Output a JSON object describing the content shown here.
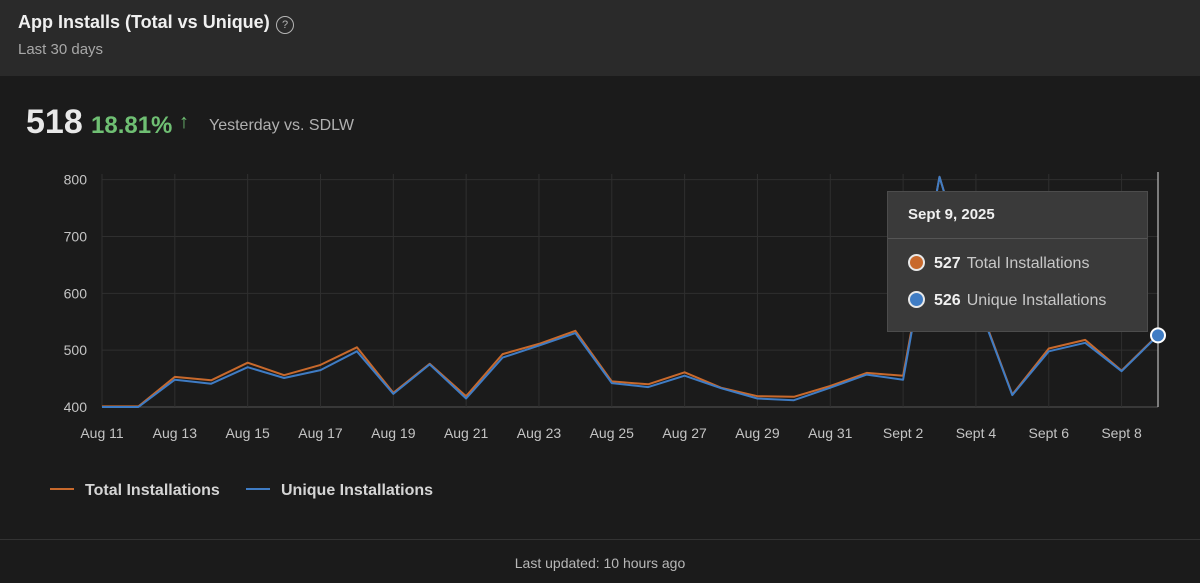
{
  "header": {
    "title": "App Installs (Total vs Unique)",
    "help_icon": "question-circle-icon",
    "help_glyph": "?",
    "subtitle": "Last 30 days"
  },
  "kpi": {
    "value": "518",
    "change": "18.81%",
    "arrow": "↑",
    "arrow_icon": "arrow-up-icon",
    "caption": "Yesterday vs. SDLW"
  },
  "tooltip": {
    "date": "Sept 9, 2025",
    "rows": [
      {
        "value": "527",
        "label": "Total Installations",
        "color": "#c8692c"
      },
      {
        "value": "526",
        "label": "Unique Installations",
        "color": "#3f7cc4"
      }
    ]
  },
  "legend": [
    {
      "label": "Total Installations",
      "color": "#c8692c"
    },
    {
      "label": "Unique Installations",
      "color": "#3f7cc4"
    }
  ],
  "footer": {
    "last_updated": "Last updated: 10 hours ago"
  },
  "colors": {
    "total": "#c8692c",
    "unique": "#3f7cc4",
    "positive": "#6fbf73"
  },
  "chart_data": {
    "type": "line",
    "x": [
      "Aug 11",
      "Aug 12",
      "Aug 13",
      "Aug 14",
      "Aug 15",
      "Aug 16",
      "Aug 17",
      "Aug 18",
      "Aug 19",
      "Aug 20",
      "Aug 21",
      "Aug 22",
      "Aug 23",
      "Aug 24",
      "Aug 25",
      "Aug 26",
      "Aug 27",
      "Aug 28",
      "Aug 29",
      "Aug 30",
      "Aug 31",
      "Sept 1",
      "Sept 2",
      "Sept 3",
      "Sept 4",
      "Sept 5",
      "Sept 6",
      "Sept 7",
      "Sept 8",
      "Sept 9"
    ],
    "x_tick_labels": [
      "Aug 11",
      "Aug 13",
      "Aug 15",
      "Aug 17",
      "Aug 19",
      "Aug 21",
      "Aug 23",
      "Aug 25",
      "Aug 27",
      "Aug 29",
      "Aug 31",
      "Sept 2",
      "Sept 4",
      "Sept 6",
      "Sept 8"
    ],
    "series": [
      {
        "name": "Total Installations",
        "color": "#c8692c",
        "values": [
          401,
          401,
          453,
          447,
          478,
          456,
          474,
          505,
          425,
          476,
          419,
          493,
          511,
          534,
          445,
          440,
          461,
          434,
          419,
          418,
          437,
          460,
          455,
          805,
          595,
          422,
          503,
          518,
          464,
          527
        ]
      },
      {
        "name": "Unique Installations",
        "color": "#3f7cc4",
        "values": [
          400,
          400,
          448,
          441,
          470,
          451,
          465,
          498,
          423,
          475,
          415,
          487,
          508,
          530,
          442,
          435,
          455,
          433,
          415,
          412,
          434,
          457,
          448,
          805,
          592,
          421,
          498,
          513,
          463,
          526
        ]
      }
    ],
    "ylim": [
      400,
      810
    ],
    "y_ticks": [
      400,
      500,
      600,
      700,
      800
    ],
    "grid": true,
    "legend_position": "bottom-left",
    "highlight_index": 29
  }
}
